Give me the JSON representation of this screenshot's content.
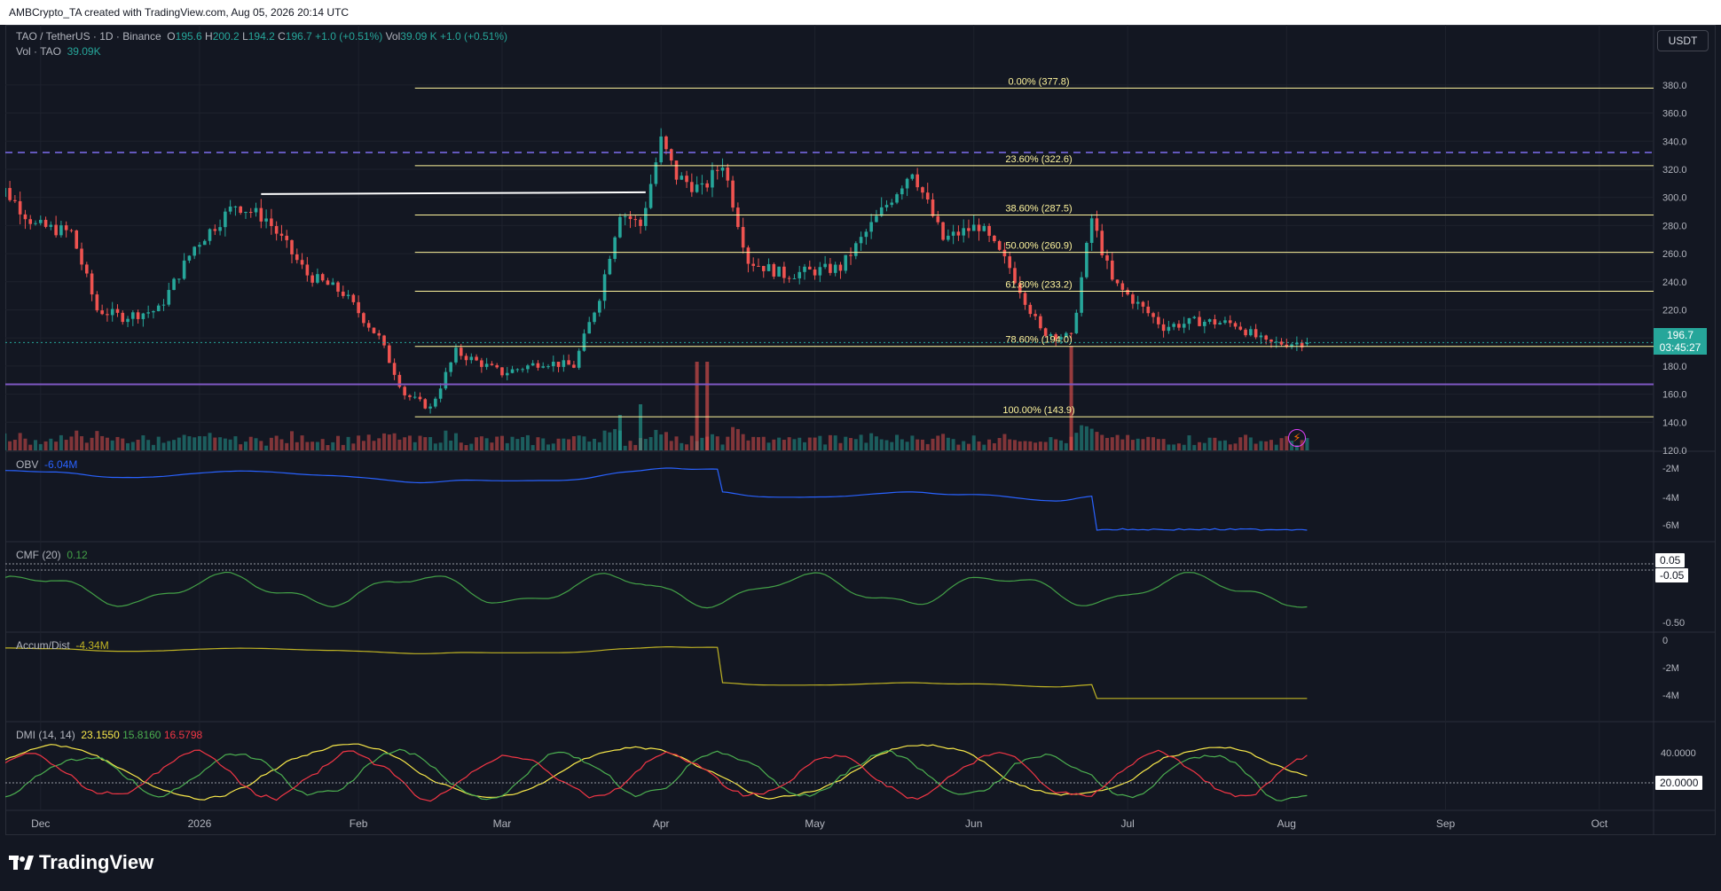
{
  "header": {
    "caption": "AMBCrypto_TA created with TradingView.com, Aug 05, 2026 20:14 UTC"
  },
  "legend": {
    "symbol": "TAO / TetherUS · 1D · Binance",
    "o_label": "O",
    "o": "195.6",
    "h_label": "H",
    "h": "200.2",
    "l_label": "L",
    "l": "194.2",
    "c_label": "C",
    "c": "196.7",
    "change": "+1.0 (+0.51%)",
    "vol_label": "Vol",
    "vol": "39.09 K",
    "vol_change": "+1.0 (+0.51%)",
    "vol_line_label": "Vol · TAO",
    "vol_line_value": "39.09K"
  },
  "currency": "USDT",
  "last_price": {
    "price": "196.7",
    "countdown": "03:45:27"
  },
  "brand": "TradingView",
  "colors": {
    "up": "#26a69a",
    "down": "#ef5350",
    "obv": "#2962ff",
    "cmf": "#43a047",
    "ad": "#c0b424",
    "adx": "#f9e94a",
    "plus_di": "#4caf50",
    "minus_di": "#f23645",
    "fib": "#fff59d",
    "support": "#7e57c2"
  },
  "chart_data": [
    {
      "type": "candlestick",
      "title": "TAO / TetherUS · 1D · Binance",
      "ylim": [
        120,
        390
      ],
      "y_ticks": [
        120,
        140,
        160,
        180,
        200,
        220,
        240,
        260,
        280,
        300,
        320,
        340,
        360,
        380
      ],
      "x_ticks": [
        "Dec",
        "2026",
        "Feb",
        "Mar",
        "Apr",
        "May",
        "Jun",
        "Jul",
        "Aug",
        "Sep",
        "Oct"
      ],
      "anchors": [
        {
          "date": "2025-11-20",
          "close": 290
        },
        {
          "date": "2025-11-24",
          "close": 305
        },
        {
          "date": "2025-11-30",
          "close": 280
        },
        {
          "date": "2025-12-07",
          "close": 275
        },
        {
          "date": "2025-12-12",
          "close": 220
        },
        {
          "date": "2025-12-17",
          "close": 215
        },
        {
          "date": "2025-12-24",
          "close": 220
        },
        {
          "date": "2025-12-31",
          "close": 265
        },
        {
          "date": "2026-01-08",
          "close": 295
        },
        {
          "date": "2026-01-14",
          "close": 285
        },
        {
          "date": "2026-01-22",
          "close": 245
        },
        {
          "date": "2026-01-29",
          "close": 232
        },
        {
          "date": "2026-02-05",
          "close": 200
        },
        {
          "date": "2026-02-10",
          "close": 160
        },
        {
          "date": "2026-02-15",
          "close": 150
        },
        {
          "date": "2026-02-20",
          "close": 190
        },
        {
          "date": "2026-03-01",
          "close": 175
        },
        {
          "date": "2026-03-09",
          "close": 183
        },
        {
          "date": "2026-03-15",
          "close": 180
        },
        {
          "date": "2026-03-20",
          "close": 230
        },
        {
          "date": "2026-03-24",
          "close": 290
        },
        {
          "date": "2026-03-28",
          "close": 280
        },
        {
          "date": "2026-04-01",
          "close": 340
        },
        {
          "date": "2026-04-04",
          "close": 315
        },
        {
          "date": "2026-04-09",
          "close": 305
        },
        {
          "date": "2026-04-13",
          "close": 325
        },
        {
          "date": "2026-04-18",
          "close": 255
        },
        {
          "date": "2026-04-25",
          "close": 245
        },
        {
          "date": "2026-05-06",
          "close": 250
        },
        {
          "date": "2026-05-14",
          "close": 290
        },
        {
          "date": "2026-05-20",
          "close": 320
        },
        {
          "date": "2026-05-26",
          "close": 270
        },
        {
          "date": "2026-06-02",
          "close": 280
        },
        {
          "date": "2026-06-08",
          "close": 250
        },
        {
          "date": "2026-06-14",
          "close": 205
        },
        {
          "date": "2026-06-20",
          "close": 200
        },
        {
          "date": "2026-06-24",
          "close": 285
        },
        {
          "date": "2026-06-28",
          "close": 240
        },
        {
          "date": "2026-07-08",
          "close": 208
        },
        {
          "date": "2026-07-15",
          "close": 212
        },
        {
          "date": "2026-07-22",
          "close": 210
        },
        {
          "date": "2026-07-28",
          "close": 196
        },
        {
          "date": "2026-08-05",
          "close": 196.7
        }
      ],
      "fib_levels": [
        {
          "label": "0.00% (377.8)",
          "value": 377.8
        },
        {
          "label": "23.60% (322.6)",
          "value": 322.6
        },
        {
          "label": "38.60% (287.5)",
          "value": 287.5
        },
        {
          "label": "50.00% (260.9)",
          "value": 260.9
        },
        {
          "label": "61.80% (233.2)",
          "value": 233.2
        },
        {
          "label": "78.60% (194.0)",
          "value": 194.0
        },
        {
          "label": "100.00% (143.9)",
          "value": 143.9
        }
      ],
      "dashed_resistance": 332,
      "support_line": 167,
      "white_trendline": {
        "from": "2026-01-13",
        "to": "2026-03-29",
        "value": 303
      }
    },
    {
      "type": "line",
      "series": [
        {
          "name": "OBV",
          "value": "-6.04M"
        }
      ],
      "y_ticks": [
        "-2M",
        "-4M",
        "-6M"
      ]
    },
    {
      "type": "line",
      "series": [
        {
          "name": "CMF (20)",
          "value": "0.12"
        }
      ],
      "y_ticks": [
        "0.05",
        "-0.05",
        "-0.50"
      ]
    },
    {
      "type": "line",
      "series": [
        {
          "name": "Accum/Dist",
          "value": "-4.34M"
        }
      ],
      "y_ticks": [
        "0",
        "-2M",
        "-4M"
      ]
    },
    {
      "type": "line",
      "title": "DMI (14, 14)",
      "series": [
        {
          "name": "ADX",
          "value": "23.1550"
        },
        {
          "name": "+DI",
          "value": "15.8160"
        },
        {
          "name": "-DI",
          "value": "16.5798"
        }
      ],
      "y_ticks": [
        "40.0000",
        "20.0000"
      ]
    }
  ]
}
